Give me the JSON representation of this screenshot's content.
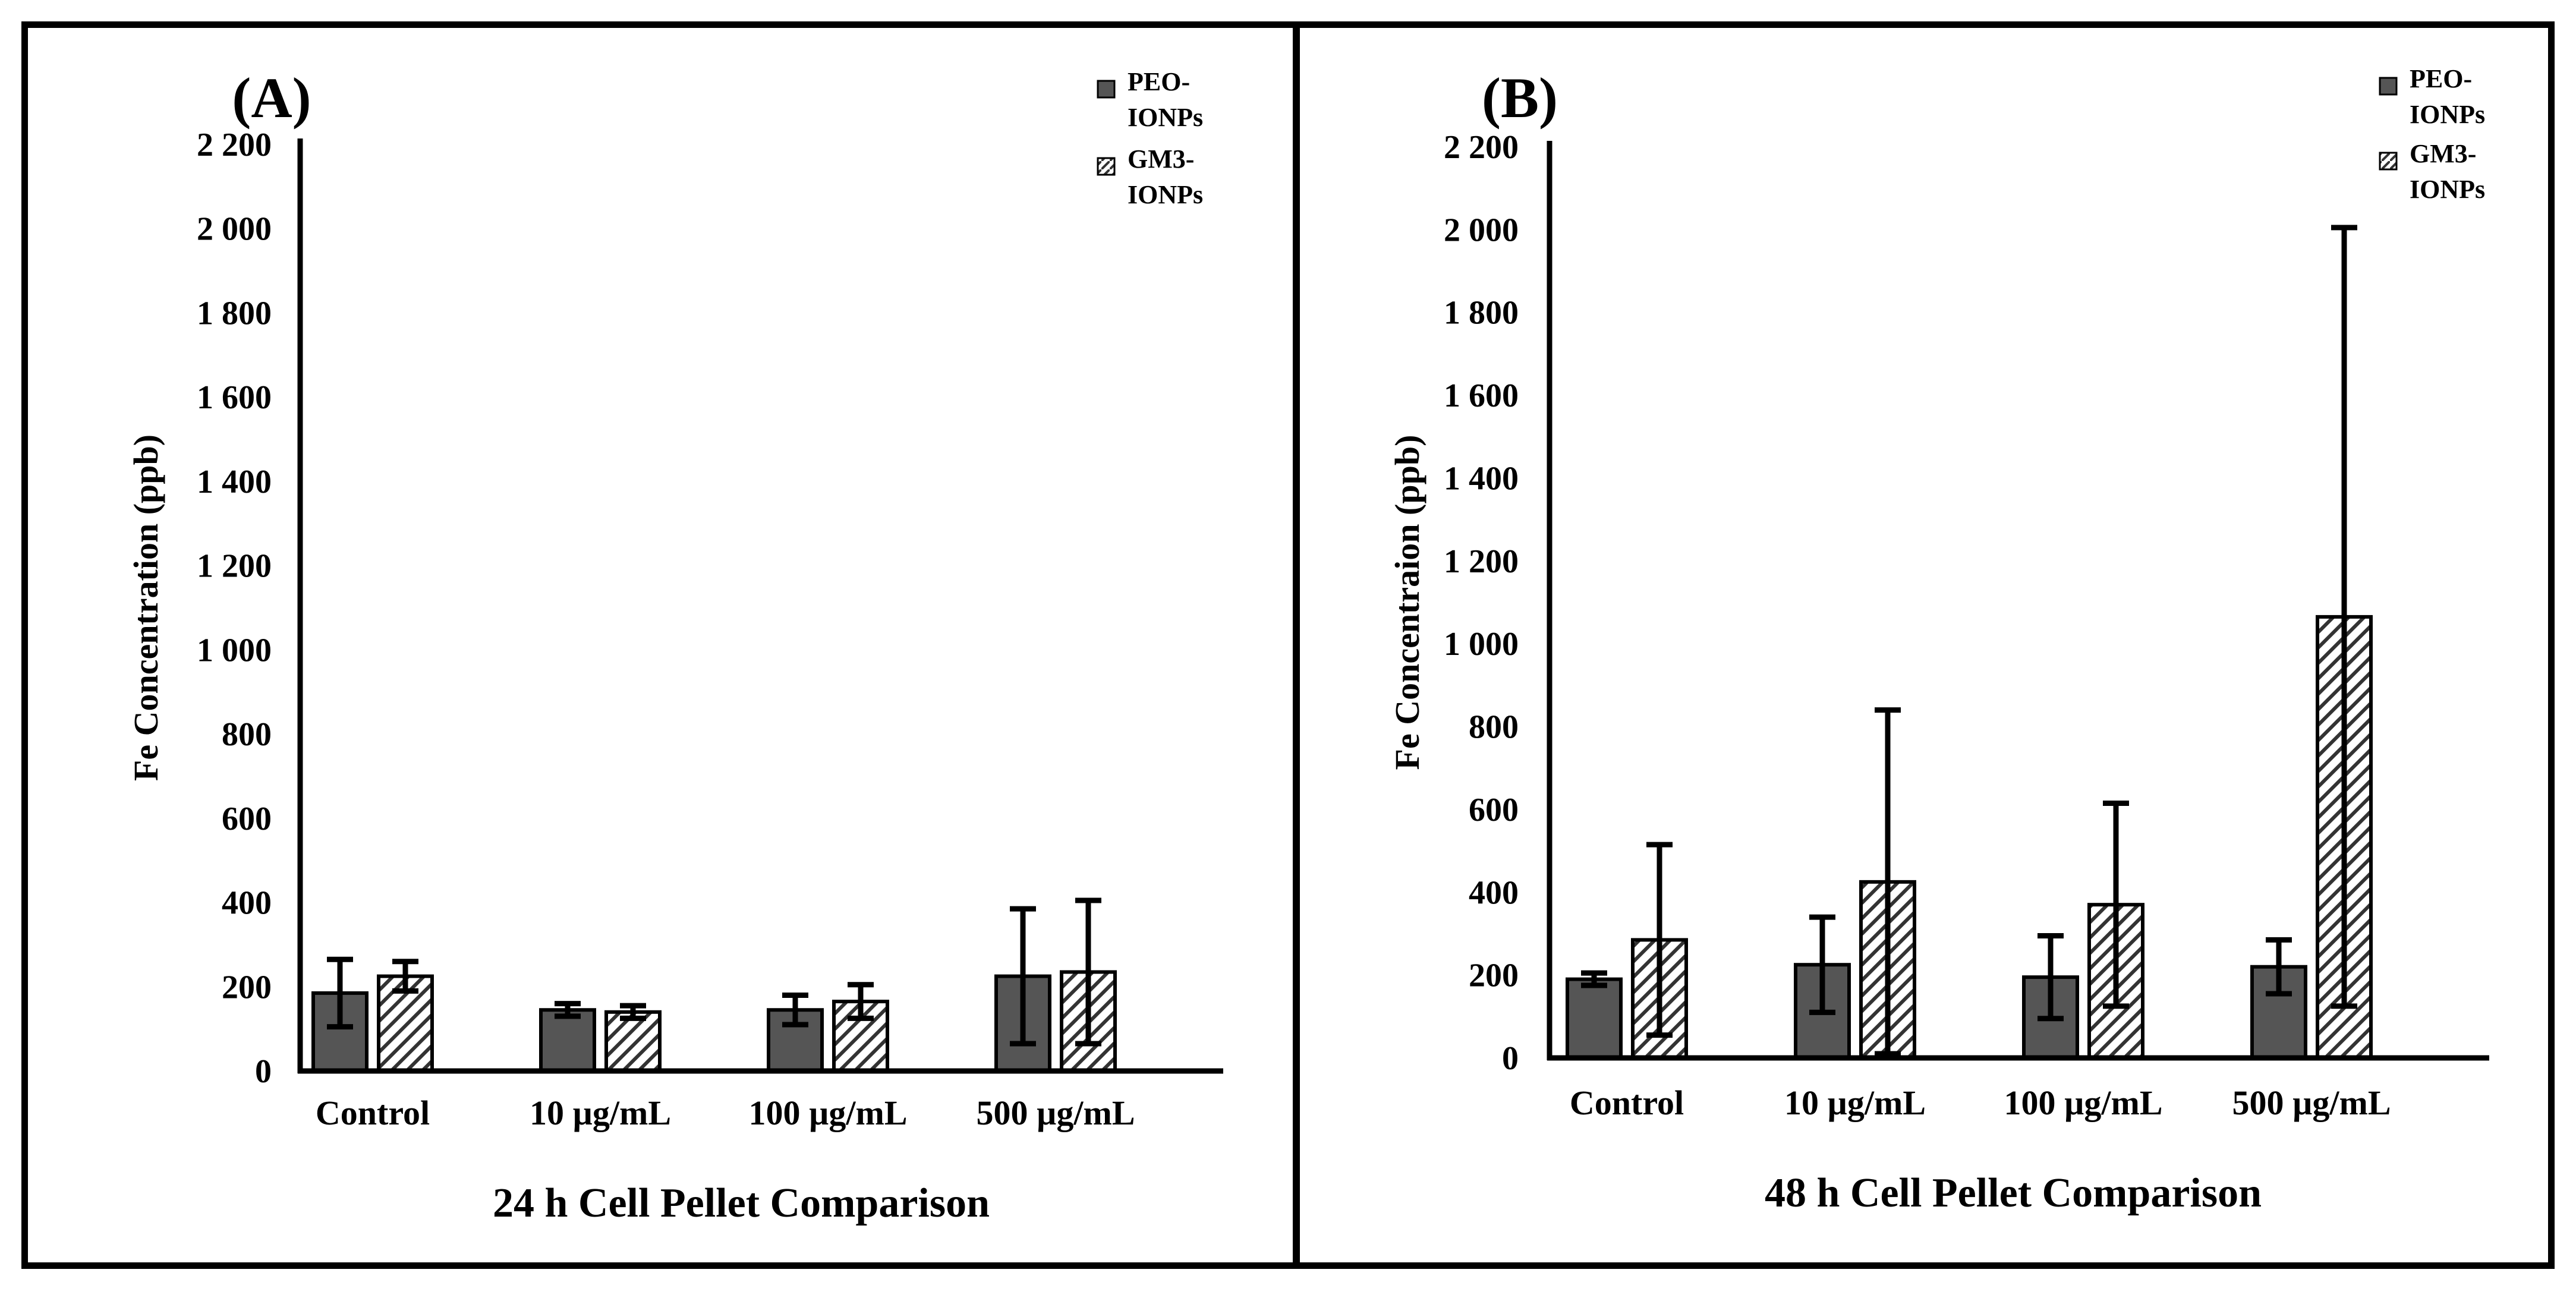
{
  "colors": {
    "peo": "#555555",
    "gm3_hatch": "#333333",
    "axis": "#000000",
    "border": "#000000",
    "background": "#ffffff"
  },
  "legend": {
    "peo_line1": "PEO-",
    "peo_line2": "IONPs",
    "gm3_line1": "GM3-",
    "gm3_line2": "IONPs"
  },
  "chart_data": [
    {
      "type": "bar",
      "panel_label": "(A)",
      "title": "",
      "xlabel": "24 h Cell Pellet Comparison",
      "ylabel": "Fe Concentration (ppb)",
      "ylim": [
        0,
        2200
      ],
      "yticks": [
        0,
        200,
        400,
        600,
        800,
        1000,
        1200,
        1400,
        1600,
        1800,
        2000,
        2200
      ],
      "ytick_labels": [
        "0",
        "200",
        "400",
        "600",
        "800",
        "1 000",
        "1 200",
        "1 400",
        "1 600",
        "1 800",
        "2 000",
        "2 200"
      ],
      "categories": [
        "Control",
        "10 µg/mL",
        "100 µg/mL",
        "500 µg/mL"
      ],
      "series": [
        {
          "name": "PEO-IONPs",
          "values": [
            185,
            145,
            145,
            225
          ],
          "errors": [
            80,
            15,
            35,
            160
          ]
        },
        {
          "name": "GM3-IONPs",
          "values": [
            225,
            140,
            165,
            235
          ],
          "errors": [
            35,
            15,
            40,
            170
          ]
        }
      ],
      "legend_position": "top-right"
    },
    {
      "type": "bar",
      "panel_label": "(B)",
      "title": "",
      "xlabel": "48 h Cell Pellet Comparison",
      "ylabel": "Fe Concentraion (ppb)",
      "ylim": [
        0,
        2200
      ],
      "yticks": [
        0,
        200,
        400,
        600,
        800,
        1000,
        1200,
        1400,
        1600,
        1800,
        2000,
        2200
      ],
      "ytick_labels": [
        "0",
        "200",
        "400",
        "600",
        "800",
        "1 000",
        "1 200",
        "1 400",
        "1 600",
        "1 800",
        "2 000",
        "2 200"
      ],
      "categories": [
        "Control",
        "10 µg/mL",
        "100 µg/mL",
        "500 µg/mL"
      ],
      "series": [
        {
          "name": "PEO-IONPs",
          "values": [
            190,
            225,
            195,
            220
          ],
          "errors": [
            15,
            115,
            100,
            65
          ]
        },
        {
          "name": "GM3-IONPs",
          "values": [
            285,
            425,
            370,
            1065
          ],
          "errors": [
            230,
            415,
            245,
            940
          ]
        }
      ],
      "legend_position": "top-right"
    }
  ]
}
